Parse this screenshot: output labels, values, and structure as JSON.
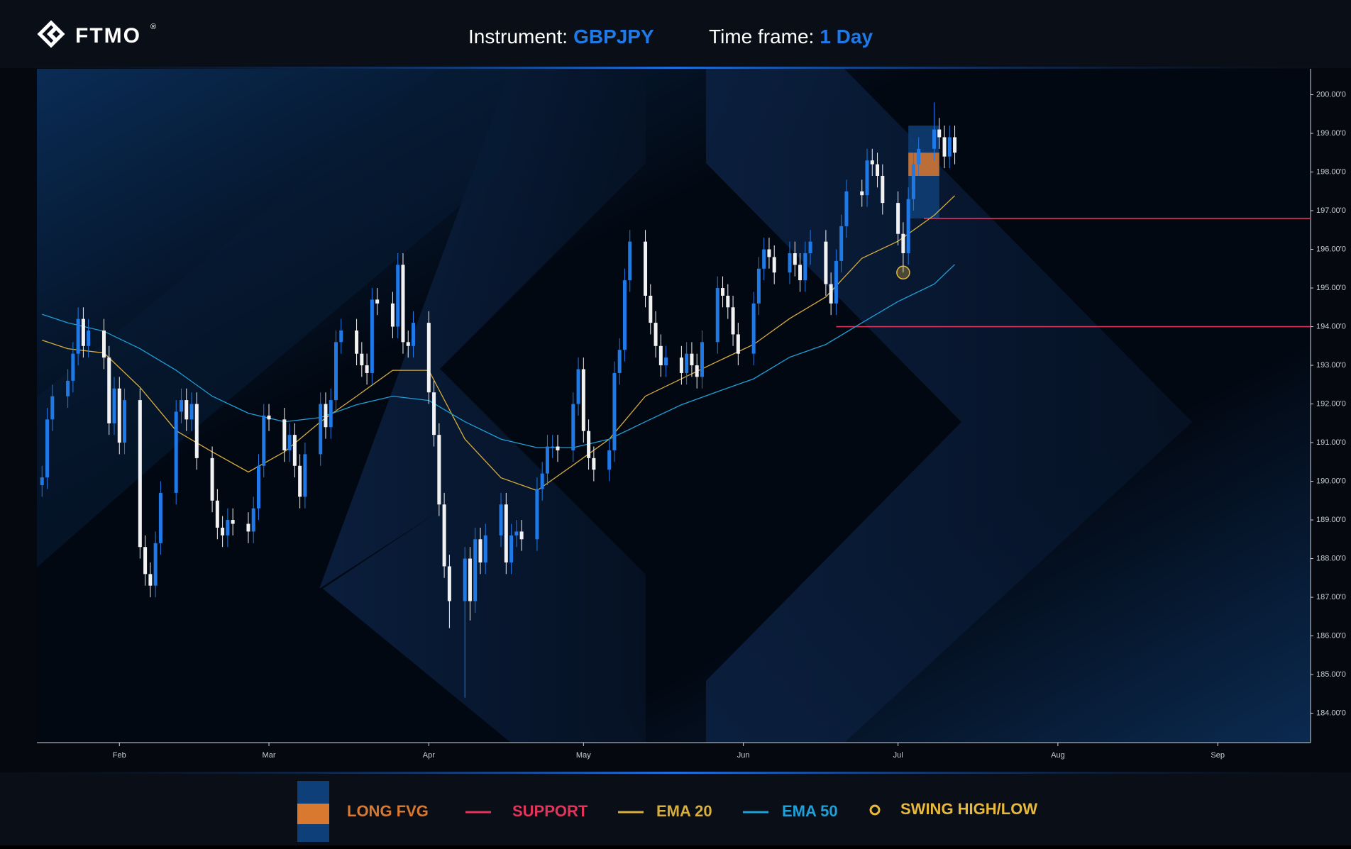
{
  "header": {
    "logo": "FTMO",
    "logo_mark": "®",
    "instrument_label": "Instrument:",
    "instrument": "GBPJPY",
    "timeframe_label": "Time frame:",
    "timeframe": "1 Day"
  },
  "chart_data": {
    "type": "candlestick",
    "up_color": "#1f7ae8",
    "down_color": "#f2f2f2",
    "x": [
      17,
      18,
      19,
      22,
      23,
      24,
      25,
      26,
      29,
      30,
      31,
      32,
      33,
      36,
      37,
      38,
      39,
      40,
      43,
      44,
      45,
      46,
      47,
      50,
      51,
      52,
      53,
      54,
      57,
      58,
      59,
      60,
      61,
      64,
      65,
      66,
      67,
      68,
      71,
      72,
      73,
      74,
      75,
      78,
      79,
      80,
      81,
      82,
      85,
      86,
      87,
      88,
      89,
      92,
      93,
      94,
      95,
      96,
      99,
      100,
      101,
      102,
      103,
      106,
      107,
      108,
      109,
      110,
      113,
      114,
      115,
      116,
      117,
      120,
      121,
      122,
      123,
      124,
      127,
      128,
      129,
      130,
      131,
      134,
      135,
      136,
      137,
      138,
      141,
      142,
      143,
      144,
      145,
      148,
      149,
      150,
      151,
      152,
      155,
      156,
      157,
      158,
      159,
      162,
      163,
      164,
      165,
      166,
      169,
      170,
      171,
      172,
      173,
      176,
      177,
      178,
      179,
      180,
      183,
      184,
      185,
      186,
      187,
      190,
      191,
      192,
      193,
      194
    ],
    "open": [
      189.9,
      190.1,
      191.6,
      192.2,
      192.6,
      193.3,
      194.2,
      193.5,
      193.9,
      193.2,
      191.5,
      192.4,
      191.0,
      192.1,
      188.3,
      187.6,
      187.3,
      188.4,
      189.7,
      191.8,
      192.1,
      191.6,
      192.0,
      190.6,
      189.5,
      188.8,
      188.6,
      189.0,
      188.9,
      188.7,
      189.3,
      190.4,
      191.7,
      191.6,
      190.8,
      191.2,
      190.4,
      189.6,
      190.7,
      192.0,
      191.4,
      192.1,
      193.6,
      193.9,
      193.3,
      193.0,
      192.8,
      194.7,
      194.6,
      194.0,
      195.6,
      193.6,
      193.5,
      194.1,
      192.3,
      191.2,
      189.4,
      187.8,
      186.9,
      188.0,
      186.9,
      188.5,
      187.9,
      188.6,
      189.4,
      187.9,
      188.6,
      188.7,
      188.5,
      189.8,
      190.2,
      190.9,
      190.9,
      190.8,
      192.0,
      192.9,
      191.3,
      190.6,
      190.3,
      190.8,
      192.8,
      193.4,
      195.2,
      196.2,
      194.8,
      194.1,
      193.5,
      193.0,
      193.2,
      192.8,
      193.3,
      193.0,
      192.7,
      193.6,
      195.0,
      194.8,
      194.5,
      193.8,
      193.3,
      194.6,
      195.5,
      196.0,
      195.8,
      195.4,
      195.9,
      195.6,
      195.2,
      195.9,
      196.2,
      195.1,
      194.6,
      195.7,
      196.6,
      197.5,
      197.4,
      198.3,
      198.2,
      197.9,
      197.2,
      196.4,
      195.9,
      197.3,
      198.2,
      198.6,
      199.1,
      198.9,
      198.4,
      198.9
    ],
    "high": [
      190.4,
      191.9,
      192.5,
      192.9,
      193.6,
      194.5,
      194.5,
      194.2,
      194.2,
      193.5,
      192.7,
      192.7,
      192.4,
      192.4,
      188.6,
      187.9,
      188.7,
      190.0,
      192.1,
      192.4,
      192.4,
      192.3,
      192.3,
      190.9,
      189.8,
      189.1,
      189.3,
      189.3,
      189.2,
      189.6,
      190.7,
      192.0,
      192.0,
      191.9,
      191.5,
      191.5,
      190.7,
      191.0,
      192.3,
      192.3,
      192.4,
      193.9,
      194.2,
      194.2,
      193.6,
      193.3,
      195.0,
      195.0,
      194.9,
      195.9,
      195.9,
      193.9,
      194.4,
      194.4,
      192.6,
      191.5,
      189.7,
      188.1,
      188.3,
      188.3,
      188.8,
      188.8,
      188.9,
      189.7,
      189.7,
      188.9,
      189.0,
      189.0,
      190.1,
      190.5,
      191.2,
      191.2,
      191.2,
      192.3,
      193.2,
      193.2,
      191.6,
      190.9,
      191.1,
      193.1,
      193.7,
      195.5,
      196.5,
      196.5,
      195.1,
      194.4,
      193.8,
      193.5,
      193.5,
      193.6,
      193.6,
      193.3,
      193.9,
      195.3,
      195.3,
      195.1,
      194.8,
      194.1,
      194.9,
      195.8,
      196.3,
      196.3,
      196.1,
      196.2,
      196.2,
      195.9,
      196.2,
      196.5,
      196.5,
      195.4,
      196.0,
      196.9,
      197.8,
      197.8,
      198.6,
      198.6,
      198.5,
      198.2,
      197.5,
      196.7,
      197.6,
      198.5,
      198.9,
      199.8,
      199.4,
      199.2,
      199.2,
      199.2
    ],
    "low": [
      189.6,
      189.8,
      191.3,
      191.9,
      192.3,
      193.0,
      193.2,
      193.2,
      192.9,
      191.2,
      191.2,
      190.7,
      190.7,
      188.0,
      187.3,
      187.0,
      187.0,
      188.1,
      189.4,
      191.5,
      191.3,
      191.3,
      190.3,
      189.2,
      188.5,
      188.3,
      188.3,
      188.6,
      188.4,
      188.4,
      189.0,
      190.1,
      191.3,
      190.5,
      190.5,
      190.1,
      189.3,
      189.3,
      190.4,
      191.1,
      191.1,
      191.8,
      193.3,
      193.0,
      192.7,
      192.5,
      192.5,
      194.3,
      193.7,
      193.7,
      193.3,
      193.2,
      193.2,
      192.0,
      190.9,
      189.1,
      187.5,
      186.2,
      184.4,
      186.4,
      186.6,
      187.6,
      187.6,
      188.3,
      187.6,
      187.6,
      188.3,
      188.2,
      188.2,
      189.5,
      189.9,
      190.6,
      190.5,
      190.5,
      191.7,
      191.0,
      190.3,
      190.0,
      190.0,
      190.5,
      192.5,
      193.1,
      194.9,
      194.5,
      193.8,
      193.2,
      192.7,
      192.7,
      192.5,
      192.5,
      192.7,
      192.4,
      192.4,
      193.3,
      194.5,
      194.2,
      193.5,
      193.0,
      193.0,
      194.3,
      195.2,
      195.5,
      195.1,
      195.1,
      195.3,
      194.9,
      194.9,
      195.6,
      194.8,
      194.3,
      194.3,
      195.4,
      196.3,
      197.1,
      197.1,
      197.9,
      197.6,
      196.9,
      196.1,
      195.4,
      195.6,
      197.0,
      197.9,
      198.3,
      198.6,
      198.1,
      198.1,
      198.2
    ],
    "close": [
      190.1,
      191.6,
      192.2,
      192.6,
      193.3,
      194.2,
      193.5,
      193.9,
      193.2,
      191.5,
      192.4,
      191.0,
      192.1,
      188.3,
      187.6,
      187.3,
      188.4,
      189.7,
      191.8,
      192.1,
      191.6,
      192.0,
      190.6,
      189.5,
      188.8,
      188.6,
      189.0,
      188.9,
      188.7,
      189.3,
      190.4,
      191.7,
      191.6,
      190.8,
      191.2,
      190.4,
      189.6,
      190.7,
      192.0,
      191.4,
      192.1,
      193.6,
      193.9,
      193.3,
      193.0,
      192.8,
      194.7,
      194.6,
      194.0,
      195.6,
      193.6,
      193.5,
      194.1,
      192.3,
      191.2,
      189.4,
      187.8,
      186.9,
      188.0,
      186.9,
      188.5,
      187.9,
      188.6,
      189.4,
      187.9,
      188.6,
      188.7,
      188.5,
      189.8,
      190.2,
      190.9,
      190.9,
      190.8,
      192.0,
      192.9,
      191.3,
      190.6,
      190.3,
      190.8,
      192.8,
      193.4,
      195.2,
      196.2,
      194.8,
      194.1,
      193.5,
      193.0,
      193.2,
      192.8,
      193.3,
      193.0,
      192.7,
      193.6,
      195.0,
      194.8,
      194.5,
      193.8,
      193.3,
      194.6,
      195.5,
      196.0,
      195.8,
      195.4,
      195.9,
      195.6,
      195.2,
      195.9,
      196.2,
      195.1,
      194.6,
      195.7,
      196.6,
      197.5,
      197.4,
      198.3,
      198.2,
      197.9,
      197.2,
      196.4,
      195.9,
      197.3,
      198.2,
      198.6,
      199.1,
      198.9,
      198.4,
      198.9,
      198.5
    ],
    "xlim": [
      16,
      263
    ],
    "xticks": [
      {
        "value": 32,
        "label": "Feb"
      },
      {
        "value": 61,
        "label": "Mar"
      },
      {
        "value": 92,
        "label": "Apr"
      },
      {
        "value": 122,
        "label": "May"
      },
      {
        "value": 153,
        "label": "Jun"
      },
      {
        "value": 183,
        "label": "Jul"
      },
      {
        "value": 214,
        "label": "Aug"
      },
      {
        "value": 245,
        "label": "Sep"
      }
    ],
    "ylim": [
      183.24,
      200.67
    ],
    "yticks": [
      {
        "value": 184,
        "label": "184.00'0"
      },
      {
        "value": 185,
        "label": "185.00'0"
      },
      {
        "value": 186,
        "label": "186.00'0"
      },
      {
        "value": 187,
        "label": "187.00'0"
      },
      {
        "value": 188,
        "label": "188.00'0"
      },
      {
        "value": 189,
        "label": "189.00'0"
      },
      {
        "value": 190,
        "label": "190.00'0"
      },
      {
        "value": 191,
        "label": "191.00'0"
      },
      {
        "value": 192,
        "label": "192.00'0"
      },
      {
        "value": 193,
        "label": "193.00'0"
      },
      {
        "value": 194,
        "label": "194.00'0"
      },
      {
        "value": 195,
        "label": "195.00'0"
      },
      {
        "value": 196,
        "label": "196.00'0"
      },
      {
        "value": 197,
        "label": "197.00'0"
      },
      {
        "value": 198,
        "label": "198.00'0"
      },
      {
        "value": 199,
        "label": "199.00'0"
      },
      {
        "value": 200,
        "label": "200.00'0"
      }
    ],
    "lines": [
      {
        "name": "EMA 20",
        "color": "#d8ae3c",
        "x": [
          17,
          22,
          29,
          36,
          43,
          50,
          57,
          64,
          71,
          78,
          85,
          92,
          99,
          106,
          113,
          120,
          127,
          134,
          141,
          148,
          155,
          162,
          169,
          176,
          183,
          190,
          194
        ],
        "values": [
          193.65,
          193.43,
          193.32,
          192.43,
          191.31,
          190.76,
          190.24,
          190.76,
          191.54,
          192.2,
          192.87,
          192.87,
          191.09,
          190.09,
          189.76,
          190.42,
          191.09,
          192.2,
          192.65,
          193.1,
          193.54,
          194.21,
          194.77,
          195.77,
          196.21,
          196.88,
          197.39
        ]
      },
      {
        "name": "EMA 50",
        "color": "#1ea0d8",
        "x": [
          17,
          22,
          29,
          36,
          43,
          50,
          57,
          64,
          71,
          78,
          85,
          92,
          99,
          106,
          113,
          120,
          127,
          134,
          141,
          148,
          155,
          162,
          169,
          176,
          183,
          190,
          194
        ],
        "values": [
          194.32,
          194.1,
          193.88,
          193.43,
          192.87,
          192.2,
          191.76,
          191.54,
          191.65,
          191.98,
          192.2,
          192.09,
          191.54,
          191.09,
          190.87,
          190.87,
          191.09,
          191.54,
          191.98,
          192.32,
          192.65,
          193.21,
          193.54,
          194.1,
          194.65,
          195.1,
          195.61
        ]
      }
    ],
    "support_name": "SUPPORT",
    "support_color": "#e0345a",
    "supports": [
      {
        "x": 188,
        "value": 196.8
      },
      {
        "x": 171,
        "value": 194.0
      }
    ],
    "fvg": {
      "name": "LONG FVG",
      "color": "#0f3f78",
      "gap_color": "#d9782f",
      "x": [
        185,
        191
      ],
      "range": [
        196.8,
        199.2
      ],
      "gap": [
        197.9,
        198.5
      ]
    },
    "swing": {
      "name": "SWING HIGH/LOW",
      "color": "#e8b93a",
      "x": 184,
      "value": 195.4
    }
  }
}
